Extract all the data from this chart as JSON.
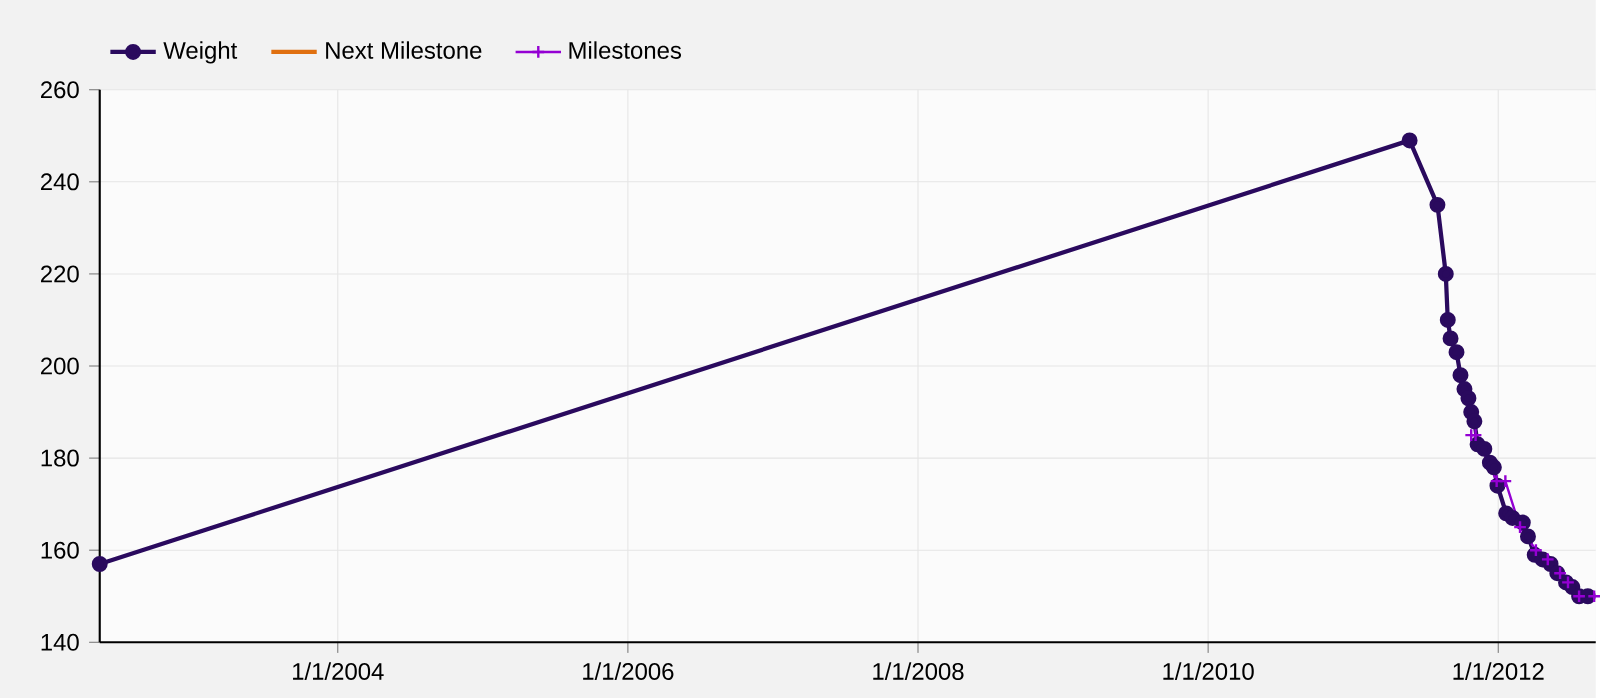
{
  "chart_data": {
    "type": "line",
    "xlim": [
      "2002-05-12",
      "2012-09-03"
    ],
    "xticks": [
      {
        "value": "2004-01-01",
        "label": "1/1/2004"
      },
      {
        "value": "2006-01-01",
        "label": "1/1/2006"
      },
      {
        "value": "2008-01-01",
        "label": "1/1/2008"
      },
      {
        "value": "2010-01-01",
        "label": "1/1/2010"
      },
      {
        "value": "2012-01-01",
        "label": "1/1/2012"
      }
    ],
    "ylim": [
      140,
      260
    ],
    "yticks": [
      140,
      160,
      180,
      200,
      220,
      240,
      260
    ],
    "grid": true,
    "legend": "top left",
    "line_style": "solid",
    "series": [
      {
        "name": "Weight",
        "color": "#2a0a5e",
        "marker": "circle",
        "x": [
          "2002-05-12",
          "2011-05-23",
          "2011-08-01",
          "2011-08-22",
          "2011-08-27",
          "2011-09-03",
          "2011-09-18",
          "2011-09-28",
          "2011-10-08",
          "2011-10-18",
          "2011-10-25",
          "2011-11-02",
          "2011-11-10",
          "2011-11-27",
          "2011-12-11",
          "2011-12-21",
          "2011-12-30",
          "2012-01-21",
          "2012-02-06",
          "2012-03-03",
          "2012-03-16",
          "2012-04-02",
          "2012-04-22",
          "2012-05-12",
          "2012-05-29",
          "2012-06-20",
          "2012-07-06",
          "2012-07-23",
          "2012-08-14"
        ],
        "values": [
          157,
          249,
          235,
          220,
          210,
          206,
          203,
          198,
          195,
          193,
          190,
          188,
          183,
          182,
          179,
          178,
          174,
          168,
          167,
          166,
          163,
          159,
          158,
          157,
          155,
          153,
          152,
          150,
          150
        ]
      },
      {
        "name": "Next Milestone",
        "color": "#e07010",
        "marker": "none"
      },
      {
        "name": "Milestones",
        "color": "#9400d3",
        "marker": "cross",
        "x": [
          "2011-10-25",
          "2011-11-05",
          "2011-12-28",
          "2012-01-19",
          "2012-02-25",
          "2012-04-05",
          "2012-05-05",
          "2012-06-05",
          "2012-06-25",
          "2012-07-23",
          "2012-08-30"
        ],
        "values": [
          185,
          185,
          175,
          175,
          165,
          160,
          158,
          155,
          153,
          150,
          150
        ]
      }
    ]
  }
}
